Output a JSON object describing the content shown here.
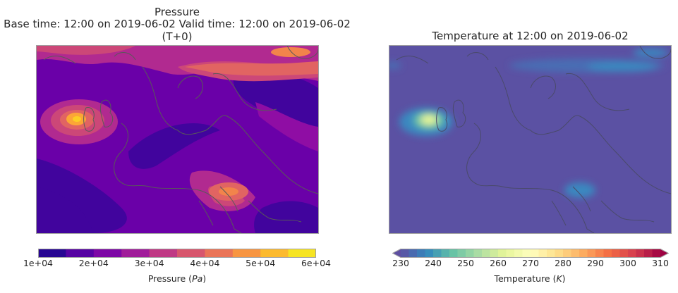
{
  "chart_data": [
    {
      "type": "heatmap",
      "title_lines": [
        "Pressure",
        "Base time: 12:00 on 2019-06-02   Valid time: 12:00 on 2019-06-02",
        "(T+0)"
      ],
      "colorbar": {
        "label_text": "Pressure (",
        "label_unit": "Pa",
        "label_close": ")",
        "ticks": [
          "1e+04",
          "2e+04",
          "3e+04",
          "4e+04",
          "5e+04",
          "6e+04"
        ],
        "range": [
          10000,
          60000
        ],
        "levels": 10,
        "colormap": [
          "#0d0887",
          "#41049d",
          "#6a00a8",
          "#8f0da4",
          "#b12a90",
          "#cc4778",
          "#e16462",
          "#f2844b",
          "#fca636",
          "#fcce25",
          "#f0f921"
        ]
      },
      "colors": {
        "land_outline": "#595959",
        "background": "#7a1aa6"
      }
    },
    {
      "type": "heatmap",
      "title_lines": [
        "Temperature at 12:00 on 2019-06-02"
      ],
      "colorbar": {
        "label_text": "Temperature (",
        "label_unit": "K",
        "label_close": ")",
        "ticks": [
          "230",
          "240",
          "250",
          "260",
          "270",
          "280",
          "290",
          "300",
          "310"
        ],
        "range": [
          230,
          310
        ],
        "extend": "both",
        "colormap": [
          "#5e4fa2",
          "#3288bd",
          "#66c2a5",
          "#abdda4",
          "#e6f598",
          "#ffffbf",
          "#fee08b",
          "#fdae61",
          "#f46d43",
          "#d53e4f",
          "#9e0142"
        ]
      },
      "colors": {
        "land_outline": "#595959",
        "background": "#5b51a3"
      }
    }
  ]
}
